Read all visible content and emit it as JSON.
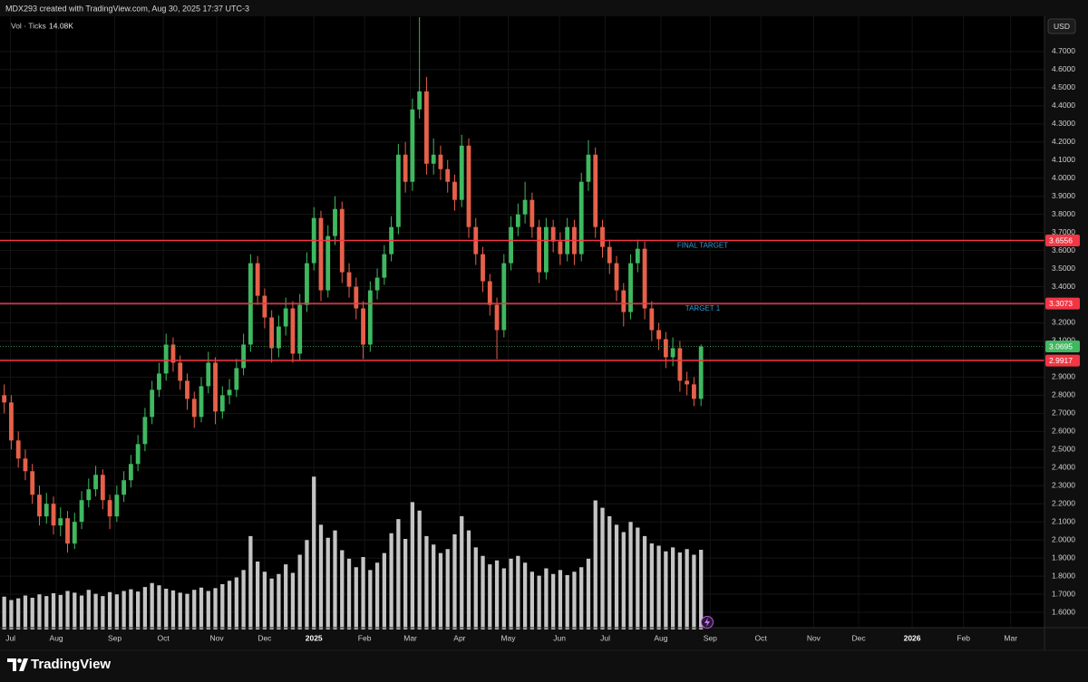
{
  "header": {
    "text": "MDX293 created with TradingView.com, Aug 30, 2025 17:37 UTC-3"
  },
  "footer": {
    "brand": "TradingView"
  },
  "chart_data": {
    "type": "candlestick",
    "currency": "USD",
    "up_color": "#3fb860",
    "down_color": "#e6604a",
    "open": [
      2.8,
      2.76,
      2.55,
      2.45,
      2.38,
      2.25,
      2.13,
      2.2,
      2.08,
      2.12,
      1.98,
      2.1,
      2.22,
      2.28,
      2.36,
      2.22,
      2.13,
      2.25,
      2.33,
      2.42,
      2.53,
      2.68,
      2.83,
      2.92,
      3.08,
      2.98,
      2.88,
      2.78,
      2.68,
      2.85,
      2.98,
      2.71,
      2.8,
      2.83,
      2.95,
      3.08,
      3.53,
      3.35,
      3.23,
      3.06,
      3.18,
      3.28,
      3.03,
      3.3,
      3.53,
      3.78,
      3.38,
      3.68,
      3.83,
      3.48,
      3.4,
      3.28,
      3.08,
      3.38,
      3.45,
      3.58,
      3.73,
      4.13,
      3.98,
      4.38,
      4.48,
      4.08,
      4.13,
      4.05,
      3.98,
      3.88,
      4.18,
      3.73,
      3.58,
      3.43,
      3.3,
      3.16,
      3.53,
      3.73,
      3.8,
      3.88,
      3.73,
      3.48,
      3.73,
      3.65,
      3.58,
      3.73,
      3.58,
      3.98,
      4.13,
      3.73,
      3.62,
      3.53,
      3.38,
      3.26,
      3.53,
      3.61,
      3.28,
      3.16,
      3.11,
      3.01,
      3.06,
      2.88,
      2.86,
      2.78
    ],
    "high": [
      2.86,
      2.8,
      2.6,
      2.5,
      2.42,
      2.3,
      2.26,
      2.24,
      2.18,
      2.16,
      2.15,
      2.27,
      2.34,
      2.41,
      2.39,
      2.25,
      2.3,
      2.38,
      2.47,
      2.58,
      2.73,
      2.88,
      2.98,
      3.14,
      3.12,
      3.02,
      2.92,
      2.82,
      2.9,
      3.04,
      3.01,
      2.85,
      2.89,
      3.0,
      3.14,
      3.58,
      3.57,
      3.39,
      3.27,
      3.24,
      3.34,
      3.32,
      3.36,
      3.59,
      3.84,
      3.82,
      3.74,
      3.9,
      3.87,
      3.53,
      3.45,
      3.32,
      3.43,
      3.5,
      3.63,
      3.79,
      4.19,
      4.2,
      4.44,
      4.89,
      4.56,
      4.22,
      4.18,
      4.1,
      4.02,
      4.24,
      4.22,
      3.78,
      3.62,
      3.47,
      3.34,
      3.58,
      3.79,
      3.86,
      3.98,
      3.92,
      3.77,
      3.78,
      3.77,
      3.7,
      3.78,
      3.77,
      4.03,
      4.21,
      4.17,
      3.77,
      3.66,
      3.57,
      3.42,
      3.58,
      3.66,
      3.65,
      3.32,
      3.2,
      3.15,
      3.12,
      3.1,
      2.93,
      2.9,
      3.08
    ],
    "low": [
      2.7,
      2.5,
      2.4,
      2.33,
      2.2,
      2.08,
      2.09,
      2.03,
      2.02,
      1.93,
      1.95,
      2.06,
      2.18,
      2.24,
      2.17,
      2.06,
      2.1,
      2.21,
      2.29,
      2.38,
      2.49,
      2.64,
      2.79,
      2.88,
      2.93,
      2.83,
      2.72,
      2.62,
      2.65,
      2.81,
      2.64,
      2.67,
      2.75,
      2.79,
      2.91,
      3.04,
      3.3,
      3.17,
      2.98,
      3.01,
      3.13,
      2.98,
      2.99,
      3.26,
      3.49,
      3.32,
      3.34,
      3.63,
      3.42,
      3.34,
      3.22,
      3.0,
      3.04,
      3.33,
      3.41,
      3.54,
      3.69,
      3.92,
      3.93,
      4.33,
      4.02,
      4.02,
      3.99,
      3.92,
      3.82,
      3.84,
      3.67,
      3.52,
      3.37,
      3.24,
      3.0,
      3.12,
      3.49,
      3.68,
      3.75,
      3.67,
      3.42,
      3.44,
      3.59,
      3.52,
      3.54,
      3.52,
      3.54,
      3.93,
      3.67,
      3.56,
      3.47,
      3.32,
      3.18,
      3.22,
      3.48,
      3.22,
      3.1,
      3.05,
      2.95,
      2.96,
      2.82,
      2.8,
      2.74,
      2.74
    ],
    "close": [
      2.76,
      2.55,
      2.45,
      2.38,
      2.25,
      2.13,
      2.2,
      2.08,
      2.12,
      1.98,
      2.1,
      2.22,
      2.28,
      2.36,
      2.22,
      2.13,
      2.25,
      2.33,
      2.42,
      2.53,
      2.68,
      2.83,
      2.92,
      3.08,
      2.98,
      2.88,
      2.78,
      2.68,
      2.85,
      2.98,
      2.71,
      2.8,
      2.83,
      2.95,
      3.08,
      3.53,
      3.35,
      3.23,
      3.06,
      3.18,
      3.28,
      3.03,
      3.3,
      3.53,
      3.78,
      3.38,
      3.68,
      3.83,
      3.48,
      3.4,
      3.28,
      3.08,
      3.38,
      3.45,
      3.58,
      3.73,
      4.13,
      3.98,
      4.38,
      4.48,
      4.08,
      4.13,
      4.05,
      3.98,
      3.88,
      4.18,
      3.73,
      3.58,
      3.43,
      3.3,
      3.16,
      3.53,
      3.73,
      3.8,
      3.88,
      3.73,
      3.48,
      3.73,
      3.65,
      3.58,
      3.73,
      3.58,
      3.98,
      4.13,
      3.73,
      3.62,
      3.53,
      3.38,
      3.26,
      3.53,
      3.61,
      3.28,
      3.16,
      3.11,
      3.01,
      3.06,
      2.88,
      2.86,
      2.78,
      3.0695
    ],
    "volume": {
      "name": "Vol · Ticks",
      "readout": "14.08K",
      "color": "#c4c4c4",
      "values": [
        5.8,
        5.2,
        5.5,
        6.0,
        5.6,
        6.2,
        5.9,
        6.4,
        6.1,
        6.8,
        6.5,
        6.0,
        7.0,
        6.3,
        5.9,
        6.6,
        6.2,
        6.8,
        7.1,
        6.7,
        7.5,
        8.2,
        7.8,
        7.2,
        6.9,
        6.5,
        6.3,
        7.0,
        7.4,
        6.8,
        7.3,
        8.0,
        8.6,
        9.2,
        10.5,
        16.5,
        12.0,
        10.2,
        9.0,
        9.8,
        11.5,
        10.0,
        13.2,
        15.8,
        27.0,
        18.5,
        16.2,
        17.5,
        14.0,
        12.5,
        11.0,
        12.8,
        10.5,
        11.8,
        13.5,
        17.0,
        19.5,
        16.0,
        22.5,
        21.0,
        16.5,
        15.0,
        13.5,
        14.2,
        16.8,
        20.0,
        17.5,
        14.5,
        13.0,
        11.5,
        12.2,
        10.8,
        12.5,
        13.0,
        11.8,
        10.2,
        9.5,
        10.8,
        9.8,
        10.5,
        9.6,
        10.2,
        11.0,
        12.5,
        22.8,
        21.5,
        20.0,
        18.5,
        17.2,
        19.0,
        18.0,
        16.5,
        15.2,
        14.8,
        13.8,
        14.5,
        13.6,
        14.2,
        13.2,
        14.08
      ]
    },
    "levels": [
      {
        "value": 3.6556,
        "name": "FINAL TARGET",
        "color": "#f23645"
      },
      {
        "value": 3.3073,
        "name": "TARGET 1",
        "color": "#f23645"
      },
      {
        "value": 2.9917,
        "color": "#f23645"
      }
    ],
    "level_text_color": "#2c9fd8",
    "ylim": [
      1.515,
      4.895
    ],
    "yticks": [
      {
        "value": 1.6,
        "label": "1.6000"
      },
      {
        "value": 1.7,
        "label": "1.7000"
      },
      {
        "value": 1.8,
        "label": "1.8000"
      },
      {
        "value": 1.9,
        "label": "1.9000"
      },
      {
        "value": 2.0,
        "label": "2.0000"
      },
      {
        "value": 2.1,
        "label": "2.1000"
      },
      {
        "value": 2.2,
        "label": "2.2000"
      },
      {
        "value": 2.3,
        "label": "2.3000"
      },
      {
        "value": 2.4,
        "label": "2.4000"
      },
      {
        "value": 2.5,
        "label": "2.5000"
      },
      {
        "value": 2.6,
        "label": "2.6000"
      },
      {
        "value": 2.7,
        "label": "2.7000"
      },
      {
        "value": 2.8,
        "label": "2.8000"
      },
      {
        "value": 2.9,
        "label": "2.9000"
      },
      {
        "value": 3.0,
        "label": "3.0000"
      },
      {
        "value": 3.1,
        "label": "3.1000"
      },
      {
        "value": 3.2,
        "label": "3.2000"
      },
      {
        "value": 3.3,
        "label": "3.3000"
      },
      {
        "value": 3.4,
        "label": "3.4000"
      },
      {
        "value": 3.5,
        "label": "3.5000"
      },
      {
        "value": 3.6,
        "label": "3.6000"
      },
      {
        "value": 3.7,
        "label": "3.7000"
      },
      {
        "value": 3.8,
        "label": "3.8000"
      },
      {
        "value": 3.9,
        "label": "3.9000"
      },
      {
        "value": 4.0,
        "label": "4.0000"
      },
      {
        "value": 4.1,
        "label": "4.1000"
      },
      {
        "value": 4.2,
        "label": "4.2000"
      },
      {
        "value": 4.3,
        "label": "4.3000"
      },
      {
        "value": 4.4,
        "label": "4.4000"
      },
      {
        "value": 4.5,
        "label": "4.5000"
      },
      {
        "value": 4.6,
        "label": "4.6000"
      },
      {
        "value": 4.7,
        "label": "4.7000"
      }
    ],
    "xlim": [
      -0.6,
      147.8
    ],
    "xticks": [
      {
        "value": 0.9,
        "label": "Jul"
      },
      {
        "value": 7.4,
        "label": "Aug"
      },
      {
        "value": 15.7,
        "label": "Sep"
      },
      {
        "value": 22.6,
        "label": "Oct"
      },
      {
        "value": 30.2,
        "label": "Nov"
      },
      {
        "value": 37,
        "label": "Dec"
      },
      {
        "value": 44,
        "label": "2025"
      },
      {
        "value": 51.2,
        "label": "Feb"
      },
      {
        "value": 57.7,
        "label": "Mar"
      },
      {
        "value": 64.7,
        "label": "Apr"
      },
      {
        "value": 71.6,
        "label": "May"
      },
      {
        "value": 78.9,
        "label": "Jun"
      },
      {
        "value": 85.4,
        "label": "Jul"
      },
      {
        "value": 93.3,
        "label": "Aug"
      },
      {
        "value": 100.3,
        "label": "Sep"
      },
      {
        "value": 107.5,
        "label": "Oct"
      },
      {
        "value": 115,
        "label": "Nov"
      },
      {
        "value": 121.4,
        "label": "Dec"
      },
      {
        "value": 129,
        "label": "2026"
      },
      {
        "value": 136.3,
        "label": "Feb"
      },
      {
        "value": 143,
        "label": "Mar"
      }
    ],
    "grid": true
  }
}
